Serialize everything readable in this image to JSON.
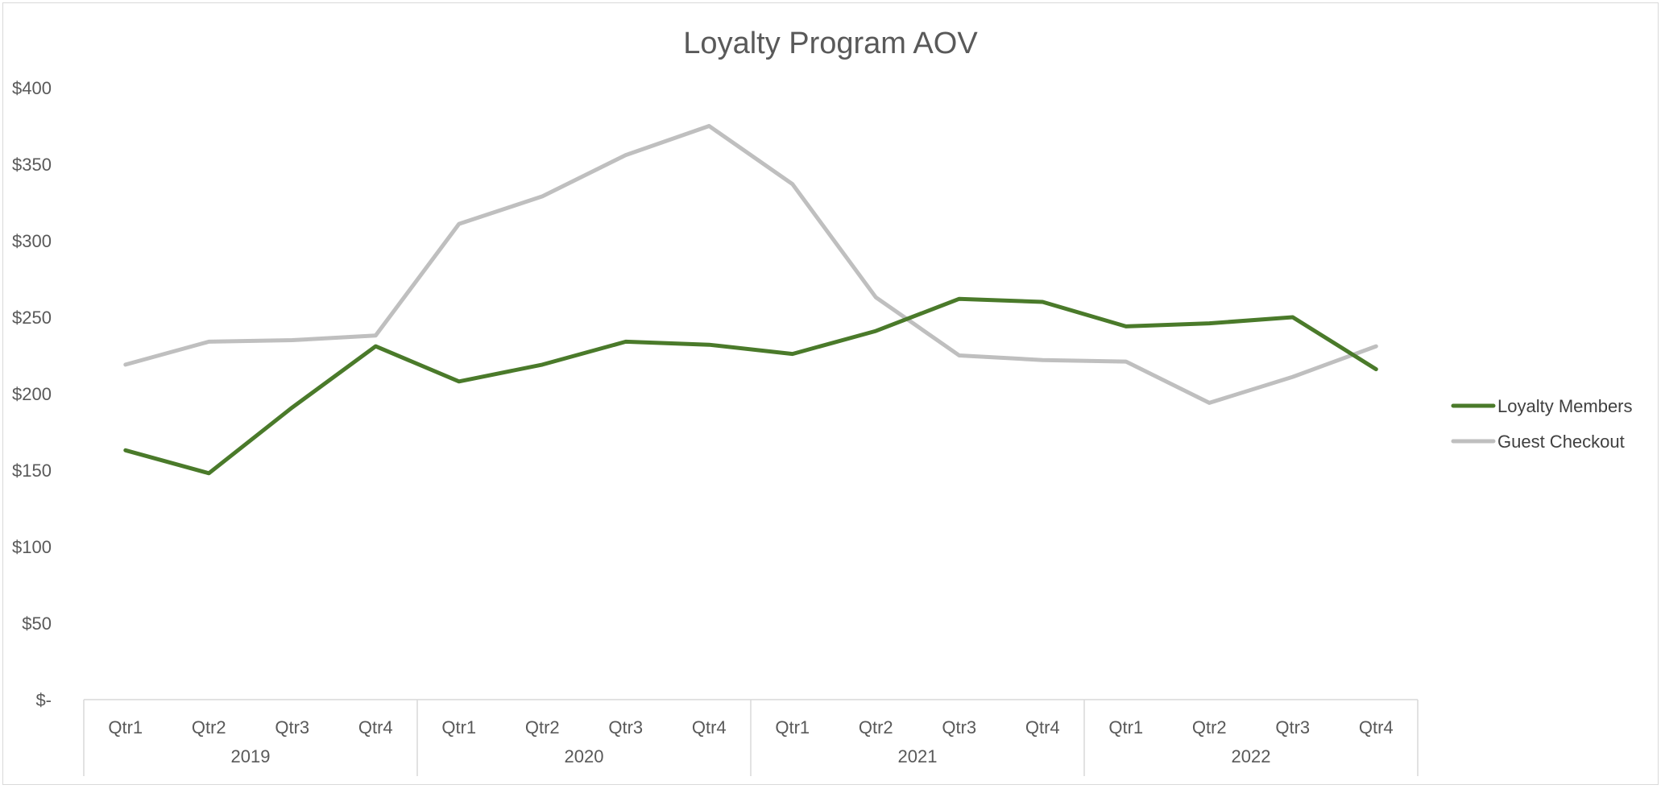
{
  "chart_data": {
    "type": "line",
    "title": "Loyalty Program AOV",
    "xlabel": "",
    "ylabel": "",
    "ylim": [
      0,
      400
    ],
    "y_ticks": [
      0,
      50,
      100,
      150,
      200,
      250,
      300,
      350,
      400
    ],
    "y_tick_labels": [
      "$-",
      "$50",
      "$100",
      "$150",
      "$200",
      "$250",
      "$300",
      "$350",
      "$400"
    ],
    "grid": false,
    "legend_position": "right",
    "groups": [
      {
        "label": "2019",
        "categories": [
          "Qtr1",
          "Qtr2",
          "Qtr3",
          "Qtr4"
        ]
      },
      {
        "label": "2020",
        "categories": [
          "Qtr1",
          "Qtr2",
          "Qtr3",
          "Qtr4"
        ]
      },
      {
        "label": "2021",
        "categories": [
          "Qtr1",
          "Qtr2",
          "Qtr3",
          "Qtr4"
        ]
      },
      {
        "label": "2022",
        "categories": [
          "Qtr1",
          "Qtr2",
          "Qtr3",
          "Qtr4"
        ]
      }
    ],
    "series": [
      {
        "name": "Loyalty Members",
        "color": "#4a7a2a",
        "values": [
          163,
          148,
          191,
          231,
          208,
          219,
          234,
          232,
          226,
          241,
          262,
          260,
          244,
          246,
          250,
          216
        ]
      },
      {
        "name": "Guest Checkout",
        "color": "#bfbfbf",
        "values": [
          219,
          234,
          235,
          238,
          311,
          329,
          356,
          375,
          337,
          263,
          225,
          222,
          221,
          194,
          211,
          231
        ]
      }
    ]
  }
}
